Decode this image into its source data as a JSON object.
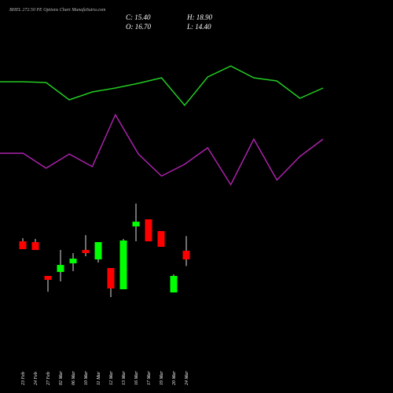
{
  "chart_data": [
    {
      "type": "line",
      "title": "BHEL 272.50 PE Options Chart MunafaSutra.com",
      "ylim": [
        0,
        100
      ],
      "series": [
        {
          "color": "#22cc22",
          "values": [
            78,
            78,
            77.5,
            66.5,
            71.5,
            74,
            77,
            80.5,
            63,
            81,
            88,
            80.5,
            78.5,
            67.5,
            74
          ]
        },
        {
          "color": "#aa22aa",
          "values": [
            32.5,
            32.5,
            23,
            32,
            24,
            57,
            32,
            18,
            25.5,
            36,
            12.5,
            41.5,
            15.5,
            30.5,
            41.5
          ]
        }
      ]
    },
    {
      "type": "candlestick",
      "ohlc_labels": {
        "close": "C: 15.40",
        "high": "H: 18.90",
        "open": "O: 16.70",
        "low": "L: 14.40"
      },
      "categories": [
        "23 Feb",
        "24 Feb",
        "27 Feb",
        "02 Mar",
        "06 Mar",
        "10 Mar",
        "11 Mar",
        "12 Mar",
        "13 Mar",
        "16 Mar",
        "17 Mar",
        "19 Mar",
        "20 Mar",
        "24 Mar"
      ],
      "open": [
        18.12,
        18.0,
        12.92,
        13.51,
        14.81,
        16.82,
        15.4,
        14.1,
        10.91,
        20.36,
        21.43,
        19.66,
        10.43,
        16.7
      ],
      "high": [
        18.59,
        18.47,
        12.92,
        16.82,
        16.35,
        19.06,
        18.0,
        14.1,
        18.47,
        23.79,
        21.43,
        19.66,
        13.15,
        18.9
      ],
      "low": [
        16.94,
        16.82,
        10.55,
        12.09,
        13.63,
        15.87,
        14.93,
        9.73,
        10.91,
        18.12,
        18.12,
        17.29,
        10.43,
        14.4
      ],
      "close": [
        16.94,
        16.82,
        12.33,
        14.57,
        15.52,
        16.35,
        18.0,
        11.03,
        18.24,
        21.07,
        18.12,
        17.29,
        12.92,
        15.4
      ],
      "up_color": "#00ff00",
      "down_color": "#ff0000",
      "ylim": [
        7.13,
        24.86
      ]
    }
  ]
}
